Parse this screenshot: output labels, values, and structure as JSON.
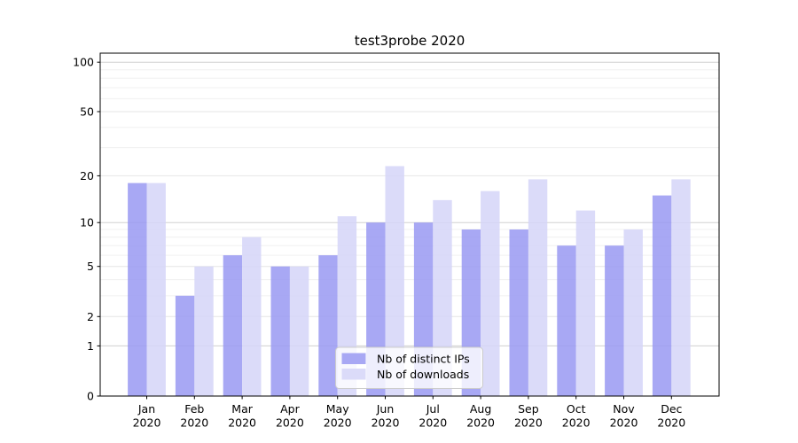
{
  "title": "test3probe 2020",
  "chart_data": {
    "type": "bar",
    "title": "test3probe 2020",
    "categories": [
      "Jan 2020",
      "Feb 2020",
      "Mar 2020",
      "Apr 2020",
      "May 2020",
      "Jun 2020",
      "Jul 2020",
      "Aug 2020",
      "Sep 2020",
      "Oct 2020",
      "Nov 2020",
      "Dec 2020"
    ],
    "series": [
      {
        "name": "Nb of distinct IPs",
        "color": "#a8a8f4",
        "values": [
          18,
          3,
          6,
          5,
          6,
          10,
          10,
          9,
          9,
          7,
          7,
          15
        ]
      },
      {
        "name": "Nb of downloads",
        "color": "#dbdbf9",
        "values": [
          18,
          5,
          8,
          5,
          11,
          23,
          14,
          16,
          19,
          12,
          9,
          19
        ]
      }
    ],
    "yscale": "log1p",
    "yticks": [
      100,
      50,
      20,
      10,
      5,
      2,
      1,
      0
    ],
    "minor_gridlines": [
      90,
      80,
      70,
      60,
      40,
      30,
      9,
      8,
      7,
      6,
      4,
      3
    ],
    "xlabel": "",
    "ylabel": "",
    "grid": true,
    "legend_position": "lower-center"
  },
  "colors": {
    "major_grid": "#d0d0d0",
    "medium_grid": "#e6e6e6",
    "minor_grid": "#f0f0f0",
    "axis": "#000000",
    "legend_border": "#cccccc"
  }
}
